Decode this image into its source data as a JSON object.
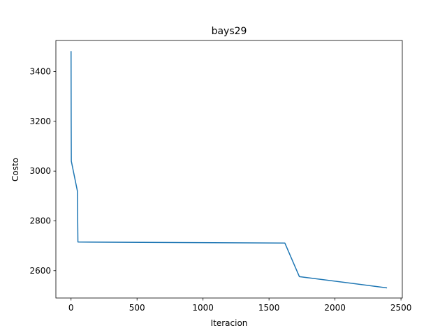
{
  "chart_data": {
    "type": "line",
    "title": "bays29",
    "xlabel": "Iteracion",
    "ylabel": "Costo",
    "xlim": [
      -115,
      2510
    ],
    "ylim": [
      2490,
      3525
    ],
    "xticks": [
      0,
      500,
      1000,
      1500,
      2000,
      2500
    ],
    "xtick_labels": [
      "0",
      "500",
      "1000",
      "1500",
      "2000",
      "2500"
    ],
    "yticks": [
      2600,
      2800,
      3000,
      3200,
      3400
    ],
    "ytick_labels": [
      "2600",
      "2800",
      "3000",
      "3200",
      "3400"
    ],
    "grid": false,
    "series": [
      {
        "color": "#1f77b4",
        "x": [
          0,
          1,
          2,
          48,
          52,
          1620,
          1730,
          2390
        ],
        "y": [
          3480,
          3200,
          3040,
          2920,
          2715,
          2711,
          2576,
          2531
        ]
      }
    ]
  }
}
